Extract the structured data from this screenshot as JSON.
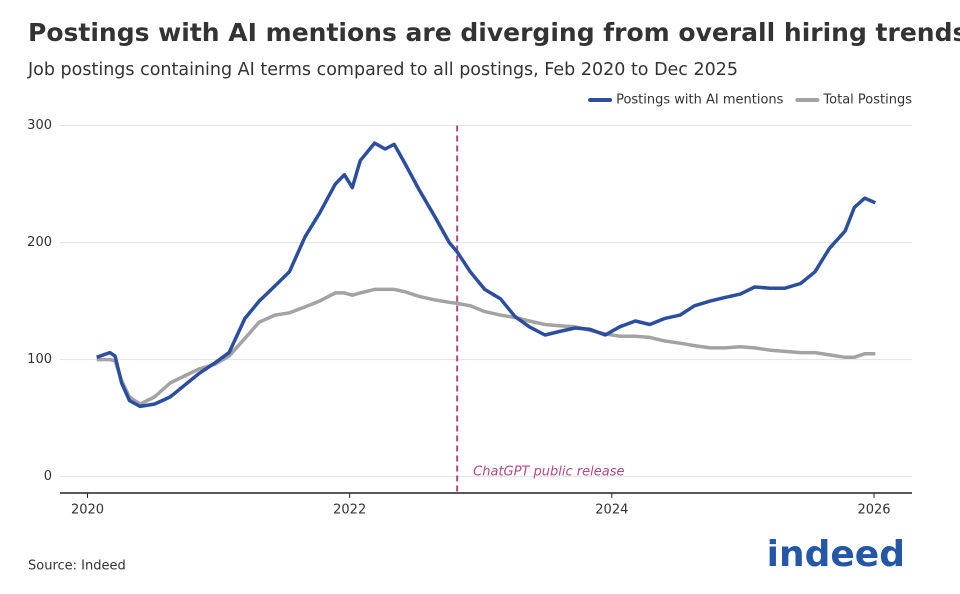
{
  "chart_data": {
    "type": "line",
    "title": "Postings with AI mentions are diverging from overall hiring trends",
    "subtitle": "Job postings containing AI terms compared to all postings, Feb 2020 to Dec 2025",
    "x": [
      2020.07,
      2020.17,
      2020.21,
      2020.26,
      2020.32,
      2020.4,
      2020.51,
      2020.63,
      2020.74,
      2020.85,
      2020.97,
      2021.08,
      2021.2,
      2021.31,
      2021.43,
      2021.54,
      2021.66,
      2021.77,
      2021.89,
      2021.96,
      2022.02,
      2022.08,
      2022.19,
      2022.27,
      2022.34,
      2022.42,
      2022.53,
      2022.65,
      2022.76,
      2022.82,
      2022.92,
      2023.03,
      2023.15,
      2023.26,
      2023.37,
      2023.49,
      2023.6,
      2023.72,
      2023.83,
      2023.95,
      2024.06,
      2024.18,
      2024.29,
      2024.4,
      2024.52,
      2024.63,
      2024.75,
      2024.86,
      2024.98,
      2025.09,
      2025.21,
      2025.32,
      2025.44,
      2025.55,
      2025.66,
      2025.78,
      2025.85,
      2025.93,
      2026.01
    ],
    "series": [
      {
        "name": "Postings with AI mentions",
        "color": "#2b4f9e",
        "values": [
          102,
          106,
          103,
          80,
          65,
          60,
          62,
          68,
          78,
          88,
          97,
          106,
          135,
          150,
          163,
          175,
          205,
          225,
          250,
          258,
          247,
          270,
          285,
          280,
          284,
          268,
          245,
          222,
          200,
          192,
          175,
          160,
          152,
          137,
          128,
          121,
          124,
          127,
          126,
          121,
          128,
          133,
          130,
          135,
          138,
          146,
          150,
          153,
          156,
          162,
          161,
          161,
          165,
          175,
          195,
          210,
          230,
          238,
          234
        ]
      },
      {
        "name": "Total Postings",
        "color": "#a3a3a3",
        "values": [
          100,
          100,
          99,
          82,
          68,
          62,
          68,
          80,
          86,
          92,
          96,
          103,
          118,
          132,
          138,
          140,
          145,
          150,
          157,
          157,
          155,
          157,
          160,
          160,
          160,
          158,
          154,
          151,
          149,
          148,
          146,
          141,
          138,
          136,
          133,
          130,
          129,
          128,
          125,
          122,
          120,
          120,
          119,
          116,
          114,
          112,
          110,
          110,
          111,
          110,
          108,
          107,
          106,
          106,
          104,
          102,
          102,
          105,
          105
        ]
      }
    ],
    "xlim": [
      2019.79,
      2026.29
    ],
    "xticks": [
      2020,
      2022,
      2024,
      2026
    ],
    "ylim": [
      -14,
      315
    ],
    "yticks": [
      0,
      100,
      200,
      300
    ],
    "grid": true,
    "legend": "top-right",
    "annotations": [
      {
        "x": 2022.82,
        "text": "ChatGPT public release",
        "color": "#b04a85"
      }
    ],
    "source": "Source: Indeed",
    "logo": "indeed"
  }
}
